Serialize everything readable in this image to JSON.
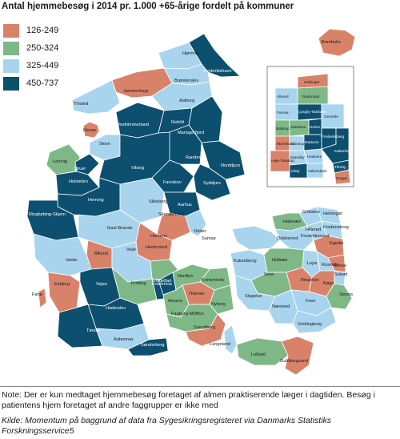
{
  "title": "Antal hjemmebesøg i 2014 pr. 1.000 +65-årige fordelt på kommuner",
  "legend": [
    {
      "label": "126-249",
      "color": "#d9826a"
    },
    {
      "label": "250-324",
      "color": "#7fb887"
    },
    {
      "label": "325-449",
      "color": "#a8d4ee"
    },
    {
      "label": "450-737",
      "color": "#0d4f6e"
    }
  ],
  "place_labels": {
    "bornholm": "Bornholm",
    "hjorring": "Hjørring",
    "frederikshavn": "Frederikshavn",
    "bronderslev": "Brønderslev",
    "jammerbugt": "Jammerbugt",
    "thisted": "Thisted",
    "aalborg": "Aalborg",
    "morso": "Morsø",
    "vesthimmerland": "Vesthimmerland",
    "rebild": "Rebild",
    "mariagerfjord": "Mariagerfjord",
    "skive": "Skive",
    "lemvig": "Lemvig",
    "struer": "Struer",
    "holstebro": "Holstebro",
    "viborg": "Viborg",
    "randers": "Randers",
    "norddjurs": "Norddjurs",
    "favrskov": "Favrskov",
    "syddjurs": "Syddjurs",
    "herning": "Herning",
    "silkeborg": "Silkeborg",
    "aarhus": "Aarhus",
    "ringkobing": "Ringkøbing-Skjern",
    "skanderborg": "Skanderborg",
    "ikast": "Ikast-Brande",
    "odder": "Odder",
    "samso": "Samsø",
    "horsens": "Horsens",
    "billund": "Billund",
    "hedensted": "Hedensted",
    "vejle": "Vejle",
    "varde": "Varde",
    "fredericia": "Fredericia",
    "kolding": "Kolding",
    "esbjerg": "Esbjerg",
    "vejen": "Vejen",
    "fano": "Fanø",
    "middelfart": "Middelfart",
    "nordfyn": "Nordfyn",
    "kerteminde": "Kerteminde",
    "odense": "Odense",
    "assens": "Assens",
    "nyborg": "Nyborg",
    "haderslev": "Haderslev",
    "faaborg": "Faaborg-Midtfyn",
    "svendborg": "Svendborg",
    "tonder": "Tønder",
    "aabenraa": "Aabenraa",
    "langeland": "Langeland",
    "sonderborg": "Sønderborg",
    "lolland": "Lolland",
    "guldborgsund": "Guldborgsund",
    "gribskov": "Gribskov",
    "helsingor": "Helsingør",
    "halsnaes": "Halsnæs",
    "hillerod": "Hillerød",
    "fredensborg": "Fredensborg",
    "frederikssund": "Frederikssund",
    "odsherred": "Odsherred",
    "egedal": "Egedal",
    "kalundborg": "Kalundborg",
    "holbaek": "Holbæk",
    "lejre": "Lejre",
    "roskilde": "Roskilde",
    "greve": "Greve",
    "solrod": "Solrød",
    "ringsted": "Ringsted",
    "koge": "Køge",
    "soro": "Sorø",
    "slagelse": "Slagelse",
    "stevns": "Stevns",
    "faxe": "Faxe",
    "naestved": "Næstved",
    "vordingborg": "Vordingborg",
    "rudersdal": "Rudersdal",
    "allerod": "Allerød",
    "furesoe": "Furesø",
    "lyngby": "Lyngby-Taarbæk",
    "gentofte": "Gentofte",
    "gladsaxe": "Gladsaxe",
    "ballerup": "Ballerup",
    "herlev": "Herlev",
    "albertslund": "Albertslund",
    "glostrup": "Glostrup",
    "frederiksberg": "Frederiksberg",
    "kobenhavn": "København",
    "hoje_taastrup": "Høje-Taastrup",
    "ishoj": "Ishøj",
    "hvidovre": "Hvidovre",
    "brondby": "Brøndby",
    "vallensbaek": "Vallensbæk",
    "taarnby": "Tårnby",
    "dragor": "Dragør",
    "rodovre": "Rødovre"
  },
  "note": "Note: Der er kun medtaget hjemmebesøg foretaget af almen praktiserende læger i dagtiden. Besøg i patientens hjem foretaget af andre faggrupper er ikke med",
  "source": "Kilde: Momentum på baggrund af data fra Sygesikringsregisteret via Danmarks Statistiks Forskningsservice5"
}
